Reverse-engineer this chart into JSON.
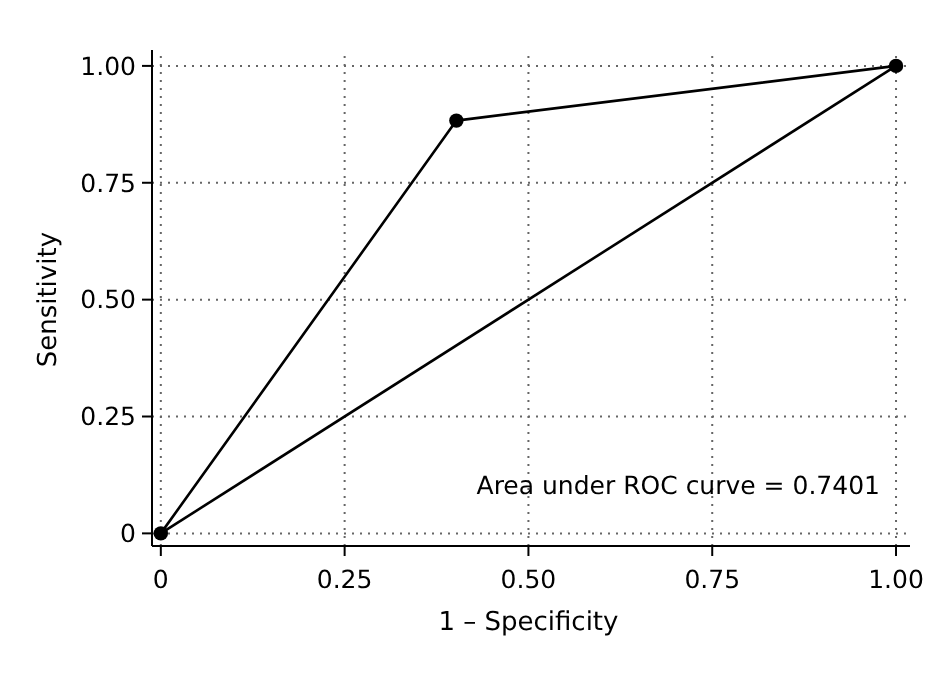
{
  "chart_data": {
    "type": "line",
    "xlabel": "1 – Specificity",
    "ylabel": "Sensitivity",
    "xlim": [
      -0.012,
      1.019
    ],
    "ylim": [
      -0.027,
      1.034
    ],
    "xticks": [
      0,
      {
        "value": 0.25,
        "label": "0.25"
      },
      {
        "value": 0.5,
        "label": "0.50"
      },
      {
        "value": 0.75,
        "label": "0.75"
      },
      {
        "value": 1,
        "label": "1.00"
      }
    ],
    "yticks": [
      0,
      {
        "value": 0.25,
        "label": "0.25"
      },
      {
        "value": 0.5,
        "label": "0.50"
      },
      {
        "value": 0.75,
        "label": "0.75"
      },
      {
        "value": 1,
        "label": "1.00"
      }
    ],
    "grid": true,
    "line_style": "solid",
    "series": [
      {
        "color": "#000000",
        "marker": "circle",
        "x": [
          0,
          0.402,
          1
        ],
        "values": [
          0,
          0.883,
          1
        ]
      },
      {
        "color": "#000000",
        "marker": "none",
        "x": [
          0,
          1
        ],
        "values": [
          0,
          1
        ]
      }
    ],
    "annotations": [
      "Area under ROC curve = 0.7401"
    ]
  }
}
